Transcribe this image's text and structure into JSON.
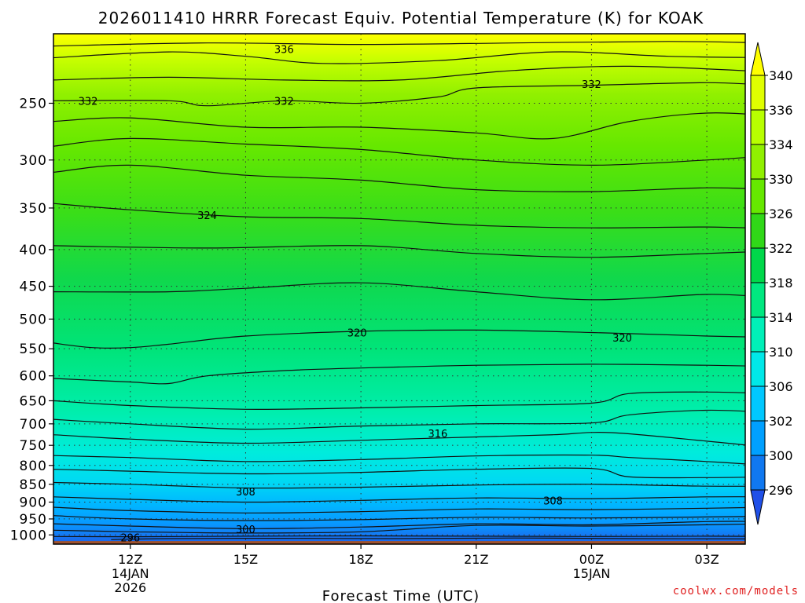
{
  "chart_data": {
    "type": "contour",
    "title": "2026011410 HRRR Forecast Equiv. Potential Temperature (K) for KOAK",
    "xlabel": "Forecast Time (UTC)",
    "ylabel": "",
    "credit": "coolwx.com/models",
    "x_ticks": [
      {
        "hour": 12,
        "label": "12Z",
        "sub1": "14JAN",
        "sub2": "2026"
      },
      {
        "hour": 15,
        "label": "15Z",
        "sub1": "",
        "sub2": ""
      },
      {
        "hour": 18,
        "label": "18Z",
        "sub1": "",
        "sub2": ""
      },
      {
        "hour": 21,
        "label": "21Z",
        "sub1": "",
        "sub2": ""
      },
      {
        "hour": 24,
        "label": "00Z",
        "sub1": "15JAN",
        "sub2": ""
      },
      {
        "hour": 27,
        "label": "03Z",
        "sub1": "",
        "sub2": ""
      }
    ],
    "xlim_hours": [
      10,
      28
    ],
    "y_ticks": [
      250,
      300,
      350,
      400,
      450,
      500,
      550,
      600,
      650,
      700,
      750,
      800,
      850,
      900,
      950,
      1000
    ],
    "ylim_hpa": [
      1030,
      200
    ],
    "ground_hpa": 1020,
    "colorbar": {
      "labels": [
        "340",
        "336",
        "334",
        "330",
        "326",
        "322",
        "318",
        "314",
        "310",
        "306",
        "302",
        "300",
        "296"
      ],
      "colors": [
        "#ffff00",
        "#e0ff00",
        "#b8ff00",
        "#90f000",
        "#66e800",
        "#30d818",
        "#00d84a",
        "#00e880",
        "#00f0b8",
        "#00e8e8",
        "#00c8ff",
        "#00a0ff",
        "#1078f0",
        "#2050e8"
      ]
    },
    "ground_color": "#a0522d",
    "contours": [
      {
        "id": "c1",
        "value": null,
        "pts": [
          [
            10,
            1005
          ],
          [
            12,
            1006
          ],
          [
            15,
            1004
          ],
          [
            18,
            1003
          ],
          [
            21,
            1004
          ],
          [
            24,
            1005
          ],
          [
            27,
            1004
          ],
          [
            28.6,
            1005
          ]
        ]
      },
      {
        "id": "c2",
        "value": 296,
        "pts": [
          [
            11.5,
            1015
          ],
          [
            13,
            1012
          ],
          [
            16,
            1011
          ],
          [
            19,
            1012
          ],
          [
            22,
            1010
          ],
          [
            25,
            1012
          ],
          [
            28.6,
            1013
          ]
        ]
      },
      {
        "id": "c3",
        "value": null,
        "pts": [
          [
            10,
            985
          ],
          [
            12,
            990
          ],
          [
            15,
            994
          ],
          [
            18,
            990
          ],
          [
            21,
            970
          ],
          [
            24,
            972
          ],
          [
            27,
            968
          ],
          [
            28.6,
            965
          ]
        ]
      },
      {
        "id": "c4",
        "value": 300,
        "pts": [
          [
            10,
            965
          ],
          [
            12,
            972
          ],
          [
            15,
            980
          ],
          [
            18,
            975
          ],
          [
            21,
            965
          ],
          [
            24,
            968
          ],
          [
            27,
            958
          ],
          [
            28.6,
            958
          ]
        ]
      },
      {
        "id": "c5",
        "value": null,
        "pts": [
          [
            10,
            940
          ],
          [
            12,
            950
          ],
          [
            15,
            955
          ],
          [
            18,
            952
          ],
          [
            21,
            945
          ],
          [
            24,
            947
          ],
          [
            27,
            944
          ],
          [
            28.6,
            942
          ]
        ]
      },
      {
        "id": "c6",
        "value": null,
        "pts": [
          [
            10,
            915
          ],
          [
            12,
            925
          ],
          [
            15,
            932
          ],
          [
            18,
            928
          ],
          [
            21,
            920
          ],
          [
            24,
            922
          ],
          [
            27,
            918
          ],
          [
            28.6,
            915
          ]
        ]
      },
      {
        "id": "c7",
        "value": 308,
        "pts": [
          [
            10,
            885
          ],
          [
            12,
            892
          ],
          [
            15,
            900
          ],
          [
            18,
            895
          ],
          [
            21,
            888
          ],
          [
            24,
            890
          ],
          [
            27,
            885
          ],
          [
            28.6,
            885
          ]
        ]
      },
      {
        "id": "c8",
        "value": null,
        "pts": [
          [
            10,
            845
          ],
          [
            12,
            850
          ],
          [
            15,
            860
          ],
          [
            18,
            858
          ],
          [
            21,
            852
          ],
          [
            24,
            850
          ],
          [
            27,
            855
          ],
          [
            28.6,
            855
          ]
        ]
      },
      {
        "id": "c9",
        "value": null,
        "pts": [
          [
            10,
            810
          ],
          [
            12,
            815
          ],
          [
            15,
            822
          ],
          [
            18,
            818
          ],
          [
            21,
            810
          ],
          [
            24,
            808
          ],
          [
            25,
            830
          ],
          [
            27,
            832
          ],
          [
            28.6,
            830
          ]
        ]
      },
      {
        "id": "c10",
        "value": null,
        "pts": [
          [
            10,
            775
          ],
          [
            12,
            780
          ],
          [
            15,
            790
          ],
          [
            18,
            785
          ],
          [
            21,
            776
          ],
          [
            24,
            774
          ],
          [
            25,
            780
          ],
          [
            27,
            790
          ],
          [
            28.6,
            800
          ]
        ]
      },
      {
        "id": "c11",
        "value": 316,
        "pts": [
          [
            10,
            725
          ],
          [
            12,
            735
          ],
          [
            15,
            745
          ],
          [
            18,
            738
          ],
          [
            21,
            730
          ],
          [
            23,
            725
          ],
          [
            24.5,
            720
          ],
          [
            27,
            740
          ],
          [
            28.6,
            755
          ]
        ]
      },
      {
        "id": "c12",
        "value": null,
        "pts": [
          [
            10,
            690
          ],
          [
            12,
            700
          ],
          [
            15,
            712
          ],
          [
            18,
            705
          ],
          [
            21,
            700
          ],
          [
            24,
            698
          ],
          [
            25,
            680
          ],
          [
            27,
            670
          ],
          [
            28.6,
            675
          ]
        ]
      },
      {
        "id": "c13",
        "value": null,
        "pts": [
          [
            10,
            650
          ],
          [
            12,
            660
          ],
          [
            15,
            668
          ],
          [
            18,
            665
          ],
          [
            21,
            660
          ],
          [
            24,
            655
          ],
          [
            25,
            635
          ],
          [
            27,
            632
          ],
          [
            28.6,
            635
          ]
        ]
      },
      {
        "id": "c14",
        "value": null,
        "pts": [
          [
            10,
            605
          ],
          [
            12,
            612
          ],
          [
            13,
            615
          ],
          [
            14,
            600
          ],
          [
            16,
            590
          ],
          [
            18,
            585
          ],
          [
            21,
            580
          ],
          [
            24,
            578
          ],
          [
            27,
            580
          ],
          [
            28.6,
            582
          ]
        ]
      },
      {
        "id": "c15",
        "value": 320,
        "pts": [
          [
            10,
            540
          ],
          [
            11,
            548
          ],
          [
            12,
            548
          ],
          [
            13,
            542
          ],
          [
            15,
            528
          ],
          [
            18,
            520
          ],
          [
            21,
            518
          ],
          [
            24,
            522
          ],
          [
            27,
            528
          ],
          [
            28.6,
            530
          ]
        ]
      },
      {
        "id": "c16",
        "value": null,
        "pts": [
          [
            10,
            458
          ],
          [
            13,
            458
          ],
          [
            15,
            453
          ],
          [
            18,
            445
          ],
          [
            21,
            458
          ],
          [
            24,
            470
          ],
          [
            27,
            462
          ],
          [
            28.6,
            466
          ]
        ]
      },
      {
        "id": "c17",
        "value": null,
        "pts": [
          [
            10,
            395
          ],
          [
            14,
            398
          ],
          [
            18,
            395
          ],
          [
            21,
            405
          ],
          [
            24,
            410
          ],
          [
            27,
            405
          ],
          [
            28.6,
            402
          ]
        ]
      },
      {
        "id": "c18",
        "value": 324,
        "pts": [
          [
            10,
            345
          ],
          [
            12,
            352
          ],
          [
            15,
            360
          ],
          [
            18,
            362
          ],
          [
            21,
            370
          ],
          [
            24,
            373
          ],
          [
            27,
            372
          ],
          [
            28.6,
            374
          ]
        ]
      },
      {
        "id": "c19",
        "value": null,
        "pts": [
          [
            10,
            312
          ],
          [
            12,
            305
          ],
          [
            15,
            315
          ],
          [
            18,
            320
          ],
          [
            21,
            330
          ],
          [
            24,
            332
          ],
          [
            27,
            328
          ],
          [
            28.6,
            330
          ]
        ]
      },
      {
        "id": "c20",
        "value": null,
        "pts": [
          [
            10,
            287
          ],
          [
            12,
            280
          ],
          [
            15,
            285
          ],
          [
            18,
            290
          ],
          [
            21,
            300
          ],
          [
            24,
            305
          ],
          [
            27,
            300
          ],
          [
            28.6,
            296
          ]
        ]
      },
      {
        "id": "c21",
        "value": null,
        "pts": [
          [
            10,
            265
          ],
          [
            12,
            262
          ],
          [
            15,
            270
          ],
          [
            18,
            270
          ],
          [
            21,
            275
          ],
          [
            23,
            280
          ],
          [
            25,
            265
          ],
          [
            27,
            258
          ],
          [
            28.6,
            260
          ]
        ]
      },
      {
        "id": "c22",
        "value": 332,
        "pts": [
          [
            10,
            248
          ],
          [
            13,
            248
          ],
          [
            14,
            252
          ],
          [
            16,
            248
          ],
          [
            18,
            250
          ],
          [
            20,
            245
          ],
          [
            21,
            238
          ],
          [
            24,
            236
          ],
          [
            27,
            234
          ],
          [
            28.6,
            236
          ]
        ]
      },
      {
        "id": "c23",
        "value": null,
        "pts": [
          [
            10,
            232
          ],
          [
            13,
            230
          ],
          [
            16,
            232
          ],
          [
            19,
            232
          ],
          [
            22,
            225
          ],
          [
            25,
            222
          ],
          [
            28.6,
            226
          ]
        ]
      },
      {
        "id": "c24",
        "value": 336,
        "pts": [
          [
            10,
            216
          ],
          [
            13,
            212
          ],
          [
            15,
            215
          ],
          [
            17,
            220
          ],
          [
            20,
            218
          ],
          [
            23,
            212
          ],
          [
            26,
            215
          ],
          [
            28.6,
            216
          ]
        ]
      },
      {
        "id": "c25",
        "value": null,
        "pts": [
          [
            10,
            208
          ],
          [
            14,
            206
          ],
          [
            18,
            207
          ],
          [
            22,
            206
          ],
          [
            26,
            205
          ],
          [
            28.6,
            206
          ]
        ]
      }
    ],
    "contour_labels": [
      {
        "text": "336",
        "x": 16.0,
        "p": 210
      },
      {
        "text": "332",
        "x": 10.9,
        "p": 248
      },
      {
        "text": "332",
        "x": 16.0,
        "p": 248
      },
      {
        "text": "332",
        "x": 24.0,
        "p": 235
      },
      {
        "text": "324",
        "x": 14.0,
        "p": 358
      },
      {
        "text": "320",
        "x": 17.9,
        "p": 522
      },
      {
        "text": "320",
        "x": 24.8,
        "p": 531
      },
      {
        "text": "316",
        "x": 20.0,
        "p": 722
      },
      {
        "text": "308",
        "x": 15.0,
        "p": 870
      },
      {
        "text": "308",
        "x": 23.0,
        "p": 895
      },
      {
        "text": "300",
        "x": 15.0,
        "p": 982
      },
      {
        "text": "296",
        "x": 12.0,
        "p": 1008
      }
    ],
    "grid": "dotted"
  }
}
